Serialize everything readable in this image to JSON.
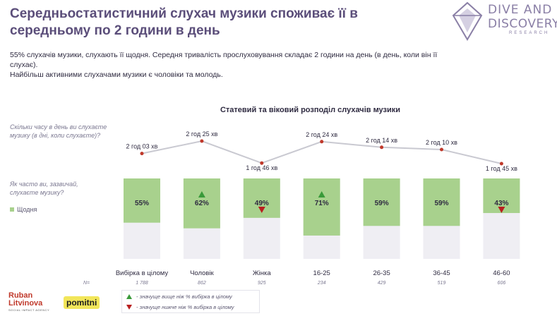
{
  "header": {
    "title": "Середньостатистичний слухач музики споживає її в середньому по 2 години в день",
    "logo": {
      "line1": "DIVE AND",
      "line2": "DISCOVERY",
      "line3": "RESEARCH"
    }
  },
  "intro": {
    "line1": "55% слухачів музики, слухають її щодня. Середня тривалість прослуховування складає 2 години на день (в день, коли він її слухає).",
    "line2": "Найбільш активними слухачами музики є чоловіки та молодь."
  },
  "questions": {
    "time_per_day": "Скільки часу в день ви слухаєте музику (в дні, коли слухаєте)?",
    "frequency": "Як часто ви, зазвичай, слухаєте музику?",
    "daily_legend": "Щодня"
  },
  "footer": {
    "brand1_line1": "Ruban",
    "brand1_line2": "Litvinova",
    "brand1_sub": "SOCIAL IMPACT AGENCY",
    "brand2": "pomitni",
    "sig_higher": "- значуще вище ніж % вибірка в цілому",
    "sig_lower": "- значуще нижче ніж % вибірка в цілому"
  },
  "colors": {
    "bar_fill": "#a8d18d",
    "bar_bg": "#efeef3",
    "line": "#c9c9d1",
    "point": "#c0392b",
    "up": "#3a9a3a",
    "down": "#b81f1f"
  },
  "chart_data": {
    "type": "bar",
    "title": "Статевий та віковий розподіл слухачів музики",
    "n_label": "N=",
    "categories": [
      "Вибірка в цілому",
      "Чоловік",
      "Жінка",
      "16-25",
      "26-35",
      "36-45",
      "46-60"
    ],
    "n": [
      "1 788",
      "862",
      "925",
      "234",
      "429",
      "519",
      "606"
    ],
    "series": [
      {
        "name": "Щодня",
        "values": [
          55,
          62,
          49,
          71,
          59,
          59,
          43
        ],
        "labels": [
          "55%",
          "62%",
          "49%",
          "71%",
          "59%",
          "59%",
          "43%"
        ],
        "significance": [
          "",
          "up",
          "down",
          "up",
          "",
          "",
          "down"
        ]
      }
    ],
    "ylim": [
      0,
      100
    ],
    "line_series": {
      "labels": [
        "2 год 03 хв",
        "2 год 25 хв",
        "1 год 46 хв",
        "2 год 24 хв",
        "2 год 14 хв",
        "2 год 10 хв",
        "1 год 45 хв"
      ],
      "minutes": [
        123,
        145,
        106,
        144,
        134,
        130,
        105
      ]
    }
  }
}
